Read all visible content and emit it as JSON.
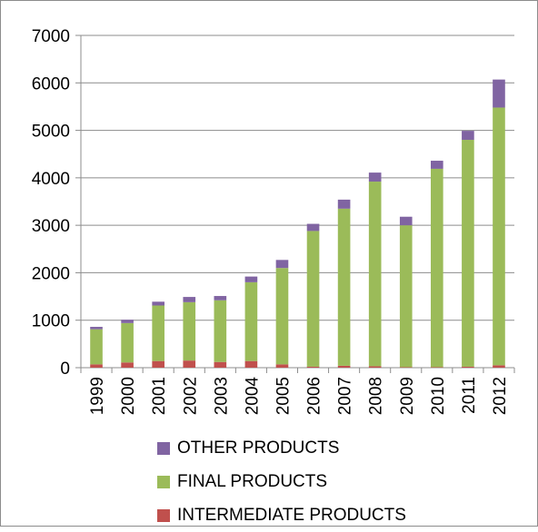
{
  "chart_data": {
    "type": "bar",
    "stacked": true,
    "categories": [
      "1999",
      "2000",
      "2001",
      "2002",
      "2003",
      "2004",
      "2005",
      "2006",
      "2007",
      "2008",
      "2009",
      "2010",
      "2011",
      "2012"
    ],
    "series": [
      {
        "name": "INTERMEDIATE PRODUCTS",
        "color": "#c0504d",
        "values": [
          70,
          110,
          140,
          150,
          120,
          140,
          70,
          20,
          40,
          30,
          10,
          10,
          20,
          50
        ]
      },
      {
        "name": "FINAL PRODUCTS",
        "color": "#9bbb59",
        "values": [
          740,
          830,
          1170,
          1230,
          1300,
          1660,
          2030,
          2860,
          3310,
          3890,
          2990,
          4180,
          4780,
          5430
        ]
      },
      {
        "name": "OTHER PRODUCTS",
        "color": "#8064a2",
        "values": [
          50,
          70,
          80,
          110,
          90,
          120,
          170,
          150,
          190,
          190,
          180,
          170,
          190,
          590
        ]
      }
    ],
    "ylim": [
      0,
      7000
    ],
    "yticks": [
      0,
      1000,
      2000,
      3000,
      4000,
      5000,
      6000,
      7000
    ],
    "grid": true,
    "legend": "bottom",
    "legend_order": [
      "OTHER PRODUCTS",
      "FINAL PRODUCTS",
      "INTERMEDIATE PRODUCTS"
    ]
  }
}
